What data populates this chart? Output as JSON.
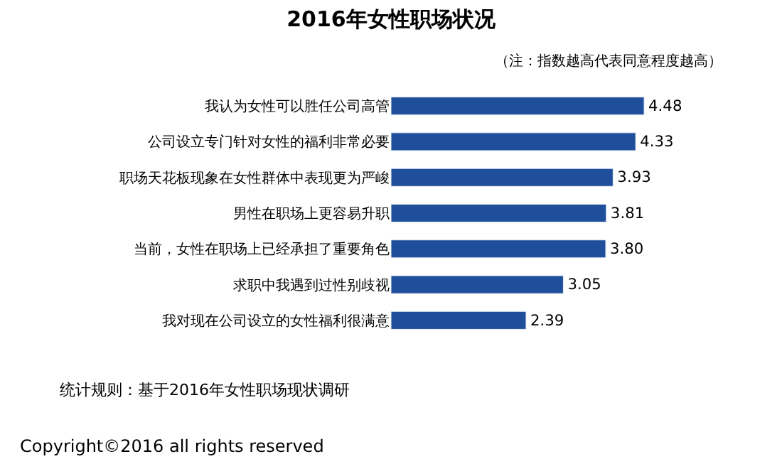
{
  "chart_data": {
    "type": "bar",
    "orientation": "horizontal",
    "title": "2016年女性职场状况",
    "subtitle": "（注：指数越高代表同意程度越高）",
    "categories": [
      "我认为女性可以胜任公司高管",
      "公司设立专门针对女性的福利非常必要",
      "职场天花板现象在女性群体中表现更为严峻",
      "男性在职场上更容易升职",
      "当前，女性在职场上已经承担了重要角色",
      "求职中我遇到过性别歧视",
      "我对现在公司设立的女性福利很满意"
    ],
    "values": [
      4.48,
      4.33,
      3.93,
      3.81,
      3.8,
      3.05,
      2.39
    ],
    "color": "#1f4e9a",
    "value_labels": [
      "4.48",
      "4.33",
      "3.93",
      "3.81",
      "3.80",
      "3.05",
      "2.39"
    ],
    "annotations": [
      "统计规则：基于2016年女性职场现状调研",
      "Copyright©2016 all rights reserved"
    ]
  }
}
